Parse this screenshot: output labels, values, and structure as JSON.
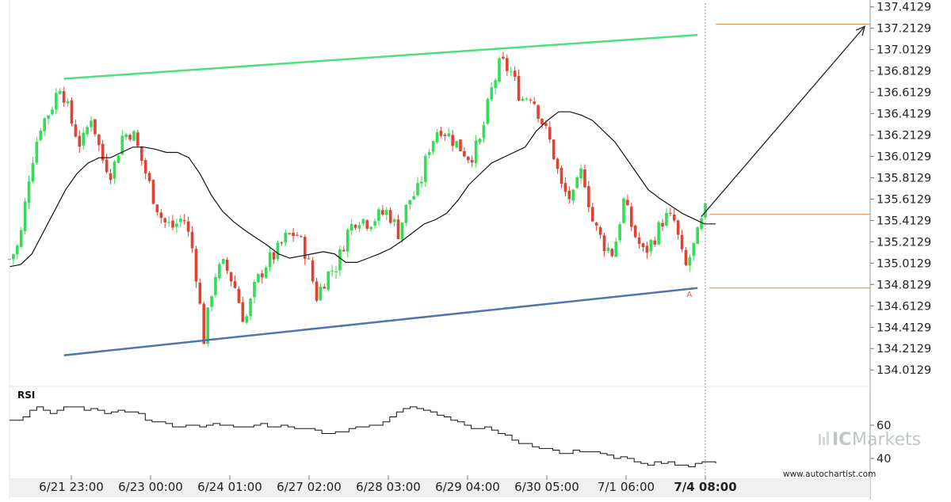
{
  "chart_data": {
    "type": "candlestick",
    "price_axis": {
      "ticks": [
        "137.4129",
        "137.2129",
        "137.0129",
        "136.8129",
        "136.6129",
        "136.4129",
        "136.2129",
        "136.0129",
        "135.8129",
        "135.6129",
        "135.4129",
        "135.2129",
        "135.0129",
        "134.8129",
        "134.6129",
        "134.4129",
        "134.2129",
        "134.0129"
      ],
      "range": [
        133.9329,
        137.4329
      ]
    },
    "time_axis": {
      "labels": [
        "6/21 23:00",
        "6/23 00:00",
        "6/24 01:00",
        "6/27 02:00",
        "6/28 03:00",
        "6/29 04:00",
        "6/30 05:00",
        "7/1 06:00",
        "7/4 08:00"
      ],
      "bold_label": "7/4 08:00"
    },
    "candles_count": 180,
    "bull_color": "#33dd55",
    "bear_color": "#dd4433",
    "price_path": [
      135.05,
      135.2,
      135.9,
      136.3,
      136.45,
      136.7,
      136.35,
      136.1,
      136.4,
      136.0,
      135.85,
      136.2,
      136.25,
      135.95,
      135.65,
      135.4,
      135.35,
      135.45,
      135.1,
      134.3,
      134.9,
      135.0,
      134.8,
      134.45,
      134.8,
      135.0,
      135.1,
      135.25,
      135.3,
      135.1,
      134.7,
      134.9,
      135.0,
      135.3,
      135.45,
      135.4,
      135.45,
      135.5,
      135.3,
      135.6,
      135.7,
      136.1,
      136.3,
      136.2,
      136.1,
      136.0,
      136.15,
      136.6,
      136.9,
      136.8,
      136.55,
      136.6,
      136.35,
      136.1,
      135.7,
      135.6,
      135.9,
      135.4,
      135.2,
      135.1,
      135.6,
      135.3,
      135.1,
      135.25,
      135.45,
      135.4,
      134.95,
      135.2,
      135.5
    ],
    "moving_average": [
      134.98,
      135.0,
      135.1,
      135.3,
      135.5,
      135.7,
      135.85,
      135.95,
      136.0,
      136.0,
      136.05,
      136.1,
      136.1,
      136.08,
      136.05,
      136.05,
      136.0,
      135.85,
      135.65,
      135.5,
      135.4,
      135.32,
      135.25,
      135.18,
      135.1,
      135.06,
      135.08,
      135.1,
      135.12,
      135.1,
      135.02,
      135.02,
      135.06,
      135.1,
      135.15,
      135.22,
      135.3,
      135.38,
      135.42,
      135.48,
      135.6,
      135.75,
      135.85,
      135.95,
      136.0,
      136.05,
      136.1,
      136.25,
      136.35,
      136.43,
      136.43,
      136.4,
      136.35,
      136.25,
      136.15,
      136.0,
      135.85,
      135.7,
      135.62,
      135.55,
      135.48,
      135.43,
      135.38,
      135.38
    ],
    "channel_upper": {
      "from": {
        "candle": 14,
        "price": 136.74
      },
      "to": {
        "candle": 177,
        "price": 137.15
      },
      "color": "#4fe07a"
    },
    "channel_lower": {
      "from": {
        "candle": 14,
        "price": 134.15
      },
      "to": {
        "candle": 177,
        "price": 134.78
      },
      "color": "#4f75b0"
    },
    "levels": [
      {
        "price": 137.25,
        "color": "#d08a3a"
      },
      {
        "price": 135.47,
        "color": "#d08a3a"
      },
      {
        "price": 134.78,
        "color": "#d08a3a"
      }
    ],
    "forecast_arrow": {
      "from": {
        "candle": 178,
        "price": 135.45
      },
      "to": {
        "candle": 220,
        "price": 137.23
      }
    },
    "marker_label": "A",
    "rsi": {
      "label": "RSI",
      "ticks": [
        "60",
        "40"
      ],
      "range": [
        30,
        80
      ],
      "values": [
        63,
        63,
        65,
        69,
        71,
        69,
        67,
        69,
        71,
        71,
        71,
        69,
        70,
        69,
        67,
        68,
        69,
        68,
        68,
        67,
        63,
        62,
        62,
        61,
        59,
        59,
        60,
        60,
        59,
        60,
        61,
        60,
        60,
        59,
        59,
        59,
        60,
        61,
        59,
        59,
        60,
        59,
        58,
        58,
        58,
        57,
        55,
        55,
        56,
        56,
        58,
        59,
        59,
        60,
        60,
        62,
        65,
        68,
        70,
        71,
        70,
        69,
        68,
        66,
        65,
        63,
        62,
        60,
        58,
        58,
        59,
        57,
        55,
        54,
        51,
        49,
        49,
        47,
        46,
        46,
        45,
        43,
        43,
        45,
        44,
        44,
        44,
        43,
        42,
        40,
        41,
        40,
        38,
        37,
        36,
        38,
        37,
        38,
        36,
        36,
        35,
        37,
        38,
        38,
        37
      ]
    },
    "brand": {
      "prefix": "IC",
      "name": "Markets"
    },
    "footer_url": "www.autochartist.com"
  }
}
